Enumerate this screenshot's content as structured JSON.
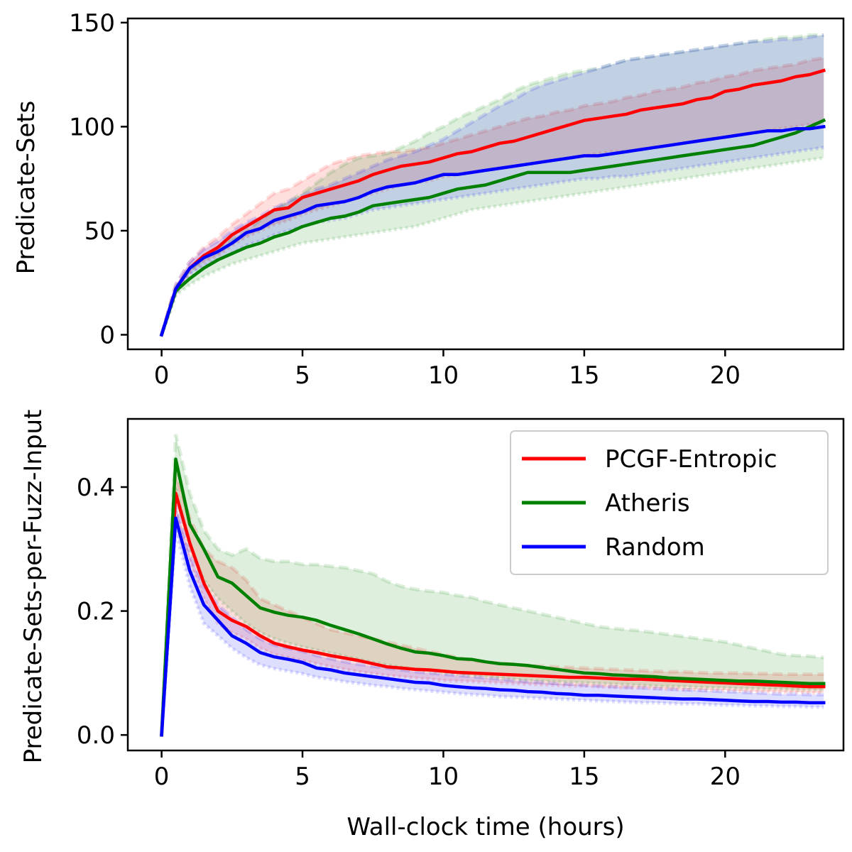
{
  "chart_data": [
    {
      "type": "line",
      "xlabel": "",
      "ylabel": "Predicate-Sets",
      "xlim": [
        -1.2,
        24.2
      ],
      "ylim": [
        -7,
        152
      ],
      "x_ticks": [
        "0",
        "5",
        "10",
        "15",
        "20"
      ],
      "y_ticks": [
        "0",
        "50",
        "100",
        "150"
      ],
      "grid": false,
      "x": [
        0,
        0.5,
        1,
        1.5,
        2,
        2.5,
        3,
        3.5,
        4,
        4.5,
        5,
        5.5,
        6,
        6.5,
        7,
        7.5,
        8,
        8.5,
        9,
        9.5,
        10,
        10.5,
        11,
        11.5,
        12,
        12.5,
        13,
        13.5,
        14,
        14.5,
        15,
        15.5,
        16,
        16.5,
        17,
        17.5,
        18,
        18.5,
        19,
        19.5,
        20,
        20.5,
        21,
        21.5,
        22,
        22.5,
        23,
        23.5
      ],
      "series": [
        {
          "name": "PCGF-Entropic",
          "color": "#ff0000",
          "values": [
            0,
            22,
            32,
            38,
            42,
            48,
            52,
            56,
            60,
            61,
            66,
            68,
            70,
            72,
            74,
            77,
            79,
            81,
            82,
            83,
            85,
            87,
            88,
            90,
            92,
            93,
            95,
            97,
            99,
            101,
            103,
            104,
            105,
            106,
            108,
            109,
            110,
            111,
            113,
            114,
            117,
            118,
            120,
            121,
            122,
            124,
            125,
            127
          ],
          "band_upper": [
            0,
            24,
            35,
            42,
            47,
            53,
            58,
            63,
            68,
            70,
            74,
            78,
            82,
            84,
            86,
            87,
            88,
            88,
            89,
            90,
            92,
            94,
            96,
            98,
            100,
            102,
            104,
            105,
            107,
            108,
            110,
            111,
            112,
            114,
            115,
            117,
            118,
            119,
            121,
            122,
            124,
            125,
            127,
            128,
            129,
            130,
            132,
            133
          ],
          "band_lower": [
            0,
            20,
            30,
            35,
            38,
            43,
            47,
            50,
            53,
            55,
            58,
            60,
            62,
            64,
            66,
            68,
            70,
            72,
            73,
            74,
            76,
            77,
            78,
            79,
            80,
            81,
            82,
            83,
            84,
            85,
            86,
            87,
            88,
            88,
            89,
            90,
            91,
            92,
            93,
            94,
            95,
            96,
            97,
            98,
            99,
            100,
            101,
            102
          ]
        },
        {
          "name": "Atheris",
          "color": "#008000",
          "values": [
            0,
            21,
            27,
            32,
            36,
            39,
            42,
            44,
            47,
            49,
            52,
            54,
            56,
            57,
            59,
            62,
            63,
            64,
            65,
            66,
            68,
            70,
            71,
            72,
            74,
            76,
            78,
            78,
            78,
            78,
            79,
            80,
            81,
            82,
            83,
            84,
            85,
            86,
            87,
            88,
            89,
            90,
            91,
            93,
            95,
            97,
            100,
            103
          ],
          "band_upper": [
            0,
            23,
            31,
            37,
            42,
            46,
            50,
            55,
            60,
            64,
            68,
            73,
            78,
            82,
            85,
            86,
            87,
            90,
            93,
            97,
            100,
            104,
            107,
            110,
            113,
            117,
            120,
            122,
            124,
            126,
            127,
            128,
            130,
            132,
            133,
            134,
            135,
            136,
            137,
            138,
            139,
            140,
            141,
            142,
            143,
            143,
            144,
            144
          ],
          "band_lower": [
            0,
            19,
            24,
            28,
            31,
            34,
            36,
            38,
            40,
            42,
            44,
            45,
            46,
            47,
            48,
            49,
            50,
            51,
            52,
            54,
            56,
            58,
            60,
            61,
            62,
            63,
            64,
            65,
            66,
            67,
            68,
            69,
            70,
            71,
            72,
            73,
            74,
            75,
            76,
            77,
            78,
            79,
            80,
            81,
            82,
            83,
            84,
            85
          ]
        },
        {
          "name": "Random",
          "color": "#0000ff",
          "values": [
            0,
            22,
            32,
            37,
            40,
            44,
            49,
            51,
            55,
            57,
            59,
            62,
            63,
            64,
            66,
            69,
            71,
            72,
            73,
            75,
            77,
            77,
            78,
            79,
            80,
            81,
            82,
            83,
            84,
            85,
            86,
            86,
            87,
            88,
            89,
            90,
            91,
            92,
            93,
            94,
            95,
            96,
            97,
            98,
            98,
            99,
            99,
            100
          ],
          "band_upper": [
            0,
            24,
            35,
            41,
            45,
            50,
            54,
            57,
            61,
            64,
            67,
            70,
            72,
            75,
            78,
            81,
            84,
            86,
            88,
            91,
            94,
            98,
            102,
            106,
            110,
            113,
            117,
            120,
            122,
            124,
            126,
            128,
            130,
            132,
            133,
            134,
            135,
            136,
            137,
            138,
            139,
            140,
            141,
            141,
            142,
            142,
            143,
            144
          ],
          "band_lower": [
            0,
            20,
            29,
            33,
            36,
            39,
            43,
            45,
            48,
            50,
            52,
            54,
            55,
            56,
            58,
            60,
            61,
            62,
            63,
            64,
            65,
            66,
            67,
            68,
            69,
            70,
            71,
            72,
            73,
            74,
            75,
            75,
            76,
            76,
            77,
            78,
            79,
            80,
            81,
            82,
            83,
            84,
            85,
            86,
            87,
            88,
            89,
            90
          ]
        }
      ]
    },
    {
      "type": "line",
      "xlabel": "Wall-clock time (hours)",
      "ylabel": "Predicate-Sets-per-Fuzz-Input",
      "xlim": [
        -1.2,
        24.2
      ],
      "ylim": [
        -0.025,
        0.51
      ],
      "x_ticks": [
        "0",
        "5",
        "10",
        "15",
        "20"
      ],
      "y_ticks": [
        "0.0",
        "0.2",
        "0.4"
      ],
      "grid": false,
      "legend_position": "top-right",
      "x": [
        0,
        0.5,
        1,
        1.5,
        2,
        2.5,
        3,
        3.5,
        4,
        4.5,
        5,
        5.5,
        6,
        6.5,
        7,
        7.5,
        8,
        8.5,
        9,
        9.5,
        10,
        10.5,
        11,
        11.5,
        12,
        12.5,
        13,
        13.5,
        14,
        14.5,
        15,
        15.5,
        16,
        16.5,
        17,
        17.5,
        18,
        18.5,
        19,
        19.5,
        20,
        20.5,
        21,
        21.5,
        22,
        22.5,
        23,
        23.5
      ],
      "series": [
        {
          "name": "PCGF-Entropic",
          "color": "#ff0000",
          "values": [
            0,
            0.39,
            0.31,
            0.245,
            0.2,
            0.185,
            0.175,
            0.16,
            0.148,
            0.142,
            0.137,
            0.133,
            0.128,
            0.124,
            0.12,
            0.115,
            0.11,
            0.108,
            0.106,
            0.105,
            0.103,
            0.101,
            0.1,
            0.099,
            0.098,
            0.097,
            0.096,
            0.095,
            0.094,
            0.093,
            0.093,
            0.092,
            0.091,
            0.09,
            0.09,
            0.089,
            0.088,
            0.087,
            0.086,
            0.085,
            0.084,
            0.083,
            0.082,
            0.081,
            0.08,
            0.079,
            0.078,
            0.078
          ],
          "band_upper": [
            0,
            0.42,
            0.35,
            0.3,
            0.28,
            0.27,
            0.25,
            0.22,
            0.21,
            0.2,
            0.19,
            0.18,
            0.17,
            0.165,
            0.16,
            0.155,
            0.15,
            0.145,
            0.14,
            0.135,
            0.13,
            0.125,
            0.12,
            0.118,
            0.116,
            0.114,
            0.112,
            0.111,
            0.11,
            0.109,
            0.108,
            0.107,
            0.106,
            0.105,
            0.104,
            0.103,
            0.102,
            0.102,
            0.101,
            0.1,
            0.1,
            0.1,
            0.099,
            0.099,
            0.098,
            0.098,
            0.098,
            0.098
          ],
          "band_lower": [
            0,
            0.36,
            0.28,
            0.22,
            0.18,
            0.165,
            0.155,
            0.14,
            0.13,
            0.125,
            0.12,
            0.115,
            0.11,
            0.106,
            0.102,
            0.099,
            0.096,
            0.094,
            0.092,
            0.09,
            0.088,
            0.087,
            0.086,
            0.085,
            0.084,
            0.083,
            0.082,
            0.081,
            0.08,
            0.079,
            0.079,
            0.078,
            0.077,
            0.076,
            0.076,
            0.075,
            0.074,
            0.073,
            0.073,
            0.072,
            0.072,
            0.071,
            0.07,
            0.07,
            0.069,
            0.069,
            0.068,
            0.068
          ]
        },
        {
          "name": "Atheris",
          "color": "#008000",
          "values": [
            0,
            0.445,
            0.34,
            0.3,
            0.255,
            0.245,
            0.225,
            0.205,
            0.198,
            0.193,
            0.19,
            0.185,
            0.177,
            0.17,
            0.163,
            0.155,
            0.147,
            0.14,
            0.134,
            0.132,
            0.128,
            0.123,
            0.122,
            0.118,
            0.115,
            0.114,
            0.112,
            0.109,
            0.106,
            0.103,
            0.1,
            0.099,
            0.097,
            0.096,
            0.095,
            0.094,
            0.092,
            0.091,
            0.09,
            0.089,
            0.088,
            0.087,
            0.087,
            0.086,
            0.085,
            0.084,
            0.083,
            0.083
          ],
          "band_upper": [
            0,
            0.485,
            0.39,
            0.33,
            0.3,
            0.29,
            0.3,
            0.285,
            0.28,
            0.28,
            0.275,
            0.275,
            0.272,
            0.27,
            0.265,
            0.26,
            0.248,
            0.24,
            0.235,
            0.232,
            0.23,
            0.225,
            0.222,
            0.215,
            0.21,
            0.205,
            0.2,
            0.195,
            0.19,
            0.185,
            0.18,
            0.175,
            0.172,
            0.17,
            0.168,
            0.165,
            0.162,
            0.159,
            0.156,
            0.153,
            0.15,
            0.145,
            0.14,
            0.135,
            0.13,
            0.128,
            0.127,
            0.125
          ],
          "band_lower": [
            0,
            0.4,
            0.3,
            0.25,
            0.22,
            0.2,
            0.18,
            0.165,
            0.155,
            0.148,
            0.142,
            0.137,
            0.132,
            0.127,
            0.122,
            0.117,
            0.113,
            0.109,
            0.106,
            0.103,
            0.1,
            0.098,
            0.096,
            0.094,
            0.092,
            0.09,
            0.088,
            0.087,
            0.086,
            0.085,
            0.084,
            0.083,
            0.082,
            0.081,
            0.08,
            0.079,
            0.078,
            0.078,
            0.077,
            0.076,
            0.076,
            0.075,
            0.075,
            0.074,
            0.074,
            0.073,
            0.073,
            0.072
          ]
        },
        {
          "name": "Random",
          "color": "#0000ff",
          "values": [
            0,
            0.35,
            0.265,
            0.21,
            0.185,
            0.16,
            0.148,
            0.133,
            0.126,
            0.122,
            0.117,
            0.108,
            0.105,
            0.1,
            0.097,
            0.094,
            0.091,
            0.088,
            0.085,
            0.084,
            0.08,
            0.078,
            0.076,
            0.075,
            0.073,
            0.072,
            0.07,
            0.069,
            0.067,
            0.066,
            0.064,
            0.064,
            0.063,
            0.062,
            0.061,
            0.06,
            0.059,
            0.058,
            0.058,
            0.057,
            0.056,
            0.055,
            0.054,
            0.054,
            0.053,
            0.053,
            0.052,
            0.052
          ],
          "band_upper": [
            0,
            0.37,
            0.29,
            0.24,
            0.21,
            0.19,
            0.17,
            0.155,
            0.145,
            0.14,
            0.135,
            0.128,
            0.123,
            0.118,
            0.114,
            0.111,
            0.108,
            0.105,
            0.102,
            0.1,
            0.098,
            0.096,
            0.094,
            0.092,
            0.09,
            0.088,
            0.086,
            0.085,
            0.083,
            0.082,
            0.08,
            0.079,
            0.078,
            0.077,
            0.076,
            0.075,
            0.074,
            0.073,
            0.072,
            0.071,
            0.07,
            0.069,
            0.068,
            0.067,
            0.066,
            0.066,
            0.065,
            0.065
          ],
          "band_lower": [
            0,
            0.33,
            0.24,
            0.18,
            0.16,
            0.14,
            0.125,
            0.113,
            0.107,
            0.103,
            0.099,
            0.093,
            0.09,
            0.086,
            0.083,
            0.08,
            0.078,
            0.075,
            0.073,
            0.071,
            0.069,
            0.067,
            0.065,
            0.064,
            0.062,
            0.061,
            0.06,
            0.059,
            0.058,
            0.057,
            0.056,
            0.055,
            0.054,
            0.053,
            0.052,
            0.052,
            0.051,
            0.05,
            0.05,
            0.049,
            0.048,
            0.048,
            0.047,
            0.047,
            0.046,
            0.046,
            0.045,
            0.045
          ]
        }
      ]
    }
  ]
}
